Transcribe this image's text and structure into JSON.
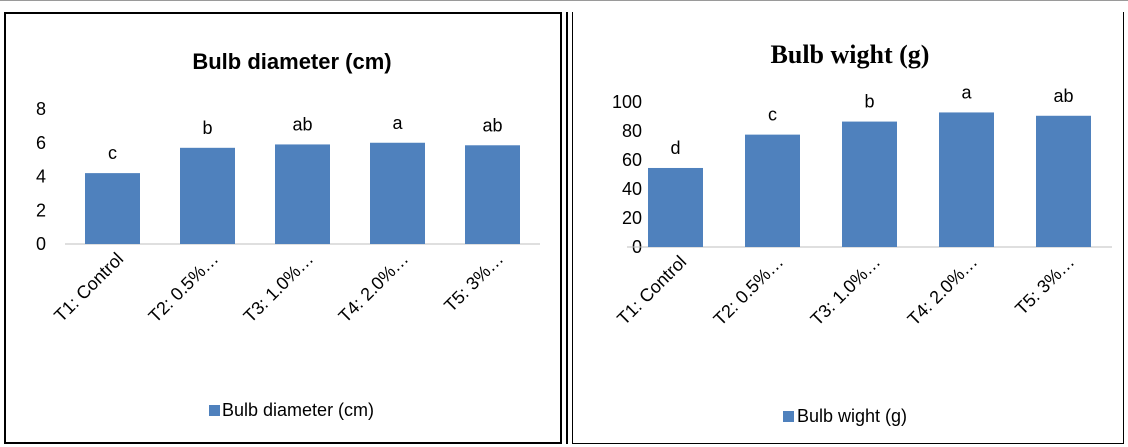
{
  "chart_data": [
    {
      "type": "bar",
      "title": "Bulb diameter (cm)",
      "categories": [
        "T1: Control",
        "T2: 0.5%…",
        "T3: 1.0%…",
        "T4: 2.0%…",
        "T5: 3%…"
      ],
      "series": [
        {
          "name": "Bulb diameter (cm)",
          "values": [
            4.2,
            5.7,
            5.9,
            6.0,
            5.85
          ]
        }
      ],
      "data_labels": [
        "c",
        "b",
        "ab",
        "a",
        "ab"
      ],
      "ylim": [
        0,
        8
      ],
      "yticks": [
        "0",
        "2",
        "4",
        "6",
        "8"
      ],
      "legend": "bottom",
      "grid": false,
      "color": "#4f81bd"
    },
    {
      "type": "bar",
      "title": "Bulb wight (g)",
      "categories": [
        "T1: Control",
        "T2: 0.5%…",
        "T3: 1.0%…",
        "T4: 2.0%…",
        "T5: 3%…"
      ],
      "series": [
        {
          "name": "Bulb wight (g)",
          "values": [
            54.5,
            77.5,
            86.5,
            92.8,
            90.5
          ]
        }
      ],
      "data_labels": [
        "d",
        "c",
        "b",
        "a",
        "ab"
      ],
      "ylim": [
        0,
        100
      ],
      "yticks": [
        "0",
        "20",
        "40",
        "60",
        "80",
        "100"
      ],
      "legend": "bottom",
      "grid": false,
      "color": "#4f81bd"
    }
  ]
}
